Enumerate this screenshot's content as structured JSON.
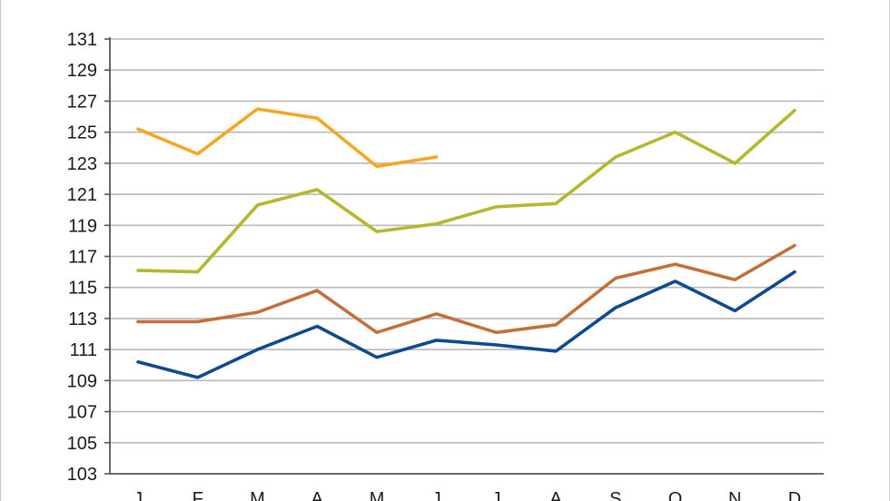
{
  "chart_data": {
    "type": "line",
    "title": "",
    "xlabel": "",
    "ylabel": "",
    "categories": [
      "J",
      "F",
      "M",
      "A",
      "M",
      "J",
      "J",
      "A",
      "S",
      "O",
      "N",
      "D"
    ],
    "y_ticks": [
      "131",
      "129",
      "127",
      "125",
      "123",
      "121",
      "119",
      "117",
      "115",
      "113",
      "111",
      "109",
      "107",
      "105",
      "103"
    ],
    "ylim": [
      103,
      131
    ],
    "grid": true,
    "legend": "none",
    "series": [
      {
        "color": "#f5a623",
        "values": [
          125.2,
          123.6,
          126.5,
          125.9,
          122.8,
          123.4,
          null,
          null,
          null,
          null,
          null,
          null
        ]
      },
      {
        "color": "#b5b72f",
        "values": [
          116.1,
          116.0,
          120.3,
          121.3,
          118.6,
          119.1,
          120.2,
          120.4,
          123.4,
          125.0,
          123.0,
          126.4
        ]
      },
      {
        "color": "#c2703a",
        "values": [
          112.8,
          112.8,
          113.4,
          114.8,
          112.1,
          113.3,
          112.1,
          112.6,
          115.6,
          116.5,
          115.5,
          117.7
        ]
      },
      {
        "color": "#0d4a8f",
        "values": [
          110.2,
          109.2,
          111.0,
          112.5,
          110.5,
          111.6,
          111.3,
          110.9,
          113.7,
          115.4,
          113.5,
          116.0
        ]
      }
    ]
  }
}
